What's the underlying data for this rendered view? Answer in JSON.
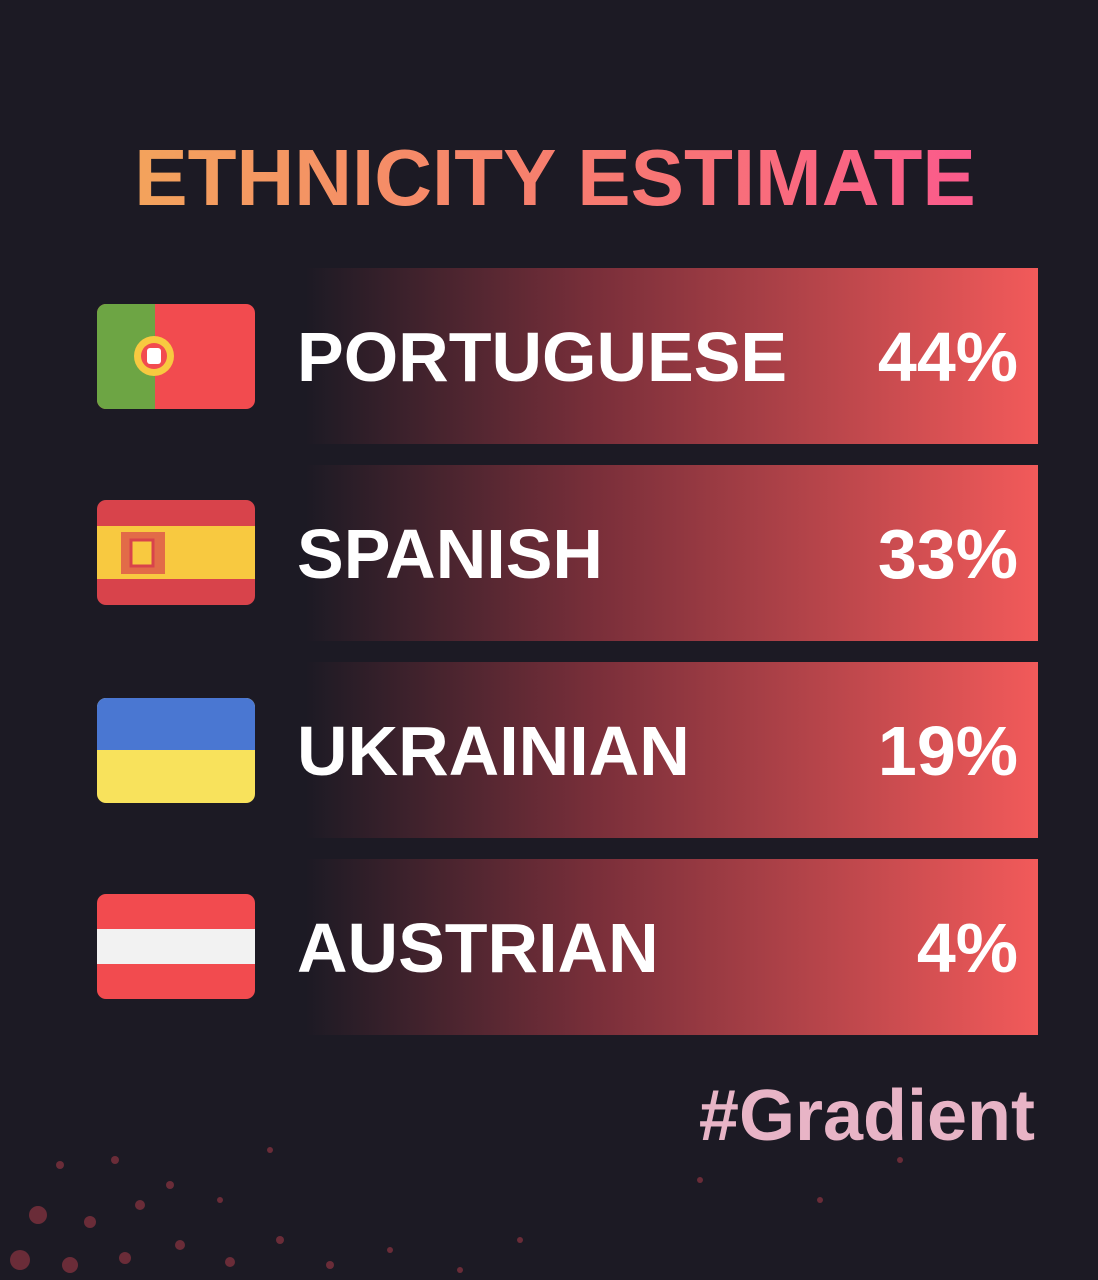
{
  "title": "ETHNICITY ESTIMATE",
  "rows": [
    {
      "name": "PORTUGUESE",
      "percent": "44%"
    },
    {
      "name": "SPANISH",
      "percent": "33%"
    },
    {
      "name": "UKRAINIAN",
      "percent": "19%"
    },
    {
      "name": "AUSTRIAN",
      "percent": "4%"
    }
  ],
  "footer": "#Gradient"
}
